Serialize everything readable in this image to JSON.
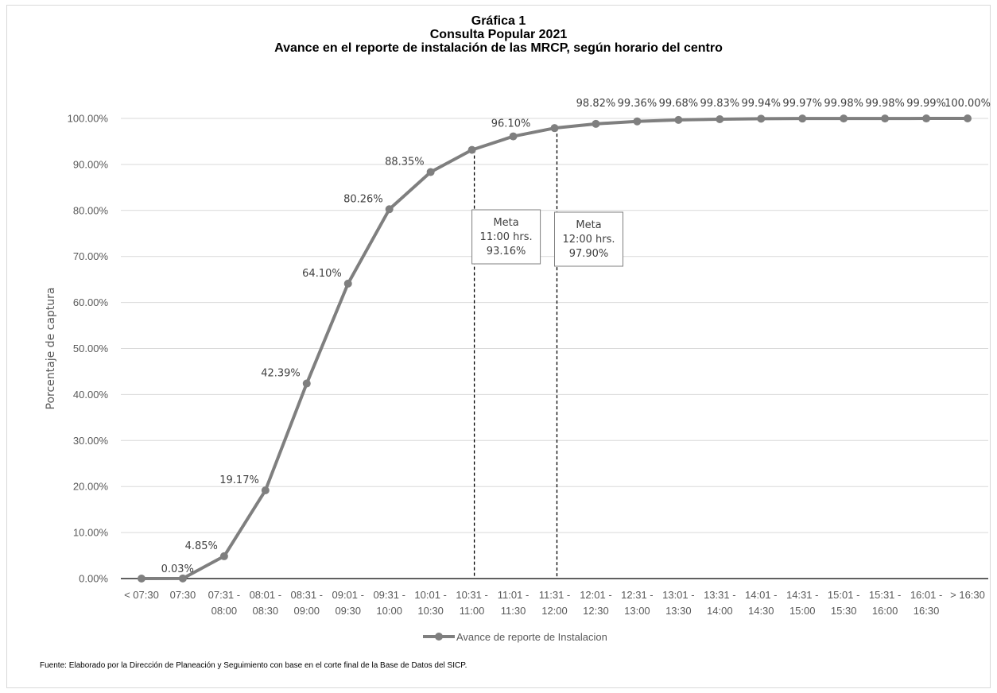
{
  "titles": {
    "line1": "Gráfica 1",
    "line2": "Consulta Popular 2021",
    "line3": "Avance en el reporte de instalación de las MRCP, según horario del centro"
  },
  "source": "Fuente: Elaborado por la Dirección de Planeación y Seguimiento con base en el corte final de la Base de Datos del SICP.",
  "chart_data": {
    "type": "line",
    "title": "Gráfica 1 Consulta Popular 2021 Avance en el reporte de instalación de las MRCP, según horario del centro",
    "ylabel": "Porcentaje de captura",
    "xlabel": "",
    "ylim": [
      0,
      100
    ],
    "yticks": [
      "0.00%",
      "10.00%",
      "20.00%",
      "30.00%",
      "40.00%",
      "50.00%",
      "60.00%",
      "70.00%",
      "80.00%",
      "90.00%",
      "100.00%"
    ],
    "grid": true,
    "legend_position": "bottom",
    "categories": [
      [
        "< 07:30"
      ],
      [
        "07:30"
      ],
      [
        "07:31 -",
        "08:00"
      ],
      [
        "08:01 -",
        "08:30"
      ],
      [
        "08:31 -",
        "09:00"
      ],
      [
        "09:01 -",
        "09:30"
      ],
      [
        "09:31 -",
        "10:00"
      ],
      [
        "10:01 -",
        "10:30"
      ],
      [
        "10:31 -",
        "11:00"
      ],
      [
        "11:01 -",
        "11:30"
      ],
      [
        "11:31 -",
        "12:00"
      ],
      [
        "12:01 -",
        "12:30"
      ],
      [
        "12:31 -",
        "13:00"
      ],
      [
        "13:01 -",
        "13:30"
      ],
      [
        "13:31 -",
        "14:00"
      ],
      [
        "14:01 -",
        "14:30"
      ],
      [
        "14:31 -",
        "15:00"
      ],
      [
        "15:01 -",
        "15:30"
      ],
      [
        "15:31 -",
        "16:00"
      ],
      [
        "16:01 -",
        "16:30"
      ],
      [
        "> 16:30"
      ]
    ],
    "series": [
      {
        "name": "Avance de reporte de Instalacion",
        "color": "#7f7f7f",
        "values": [
          0.0,
          0.03,
          4.85,
          19.17,
          42.39,
          64.1,
          80.26,
          88.35,
          93.16,
          96.1,
          97.9,
          98.82,
          99.36,
          99.68,
          99.83,
          99.94,
          99.97,
          99.98,
          99.98,
          99.99,
          100.0
        ],
        "labels": [
          "",
          "0.03%",
          "4.85%",
          "19.17%",
          "42.39%",
          "64.10%",
          "80.26%",
          "88.35%",
          "",
          "96.10%",
          "",
          "98.82%",
          "99.36%",
          "99.68%",
          "99.83%",
          "99.94%",
          "99.97%",
          "99.98%",
          "99.98%",
          "99.99%",
          "100.00%"
        ]
      }
    ],
    "annotations": [
      {
        "category_index": 8,
        "lines": [
          "Meta",
          "11:00 hrs.",
          "93.16%"
        ]
      },
      {
        "category_index": 10,
        "lines": [
          "Meta",
          "12:00 hrs.",
          "97.90%"
        ]
      }
    ]
  }
}
